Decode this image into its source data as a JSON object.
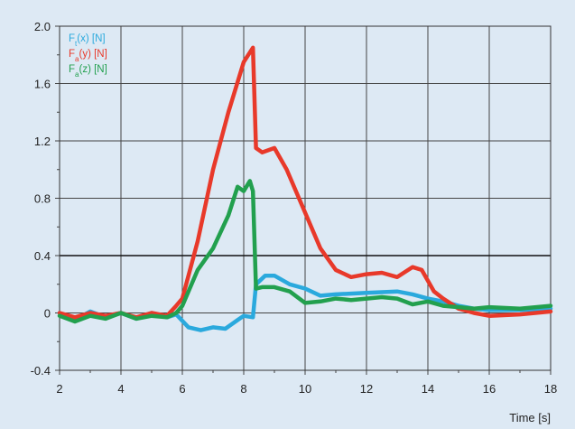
{
  "chart_data": {
    "type": "line",
    "title": "",
    "xlabel": "Time [s]",
    "ylabel": "",
    "xlim": [
      2,
      18
    ],
    "ylim": [
      -0.4,
      2.0
    ],
    "xticks": [
      "2",
      "4",
      "6",
      "8",
      "10",
      "12",
      "14",
      "16",
      "18"
    ],
    "yticks": [
      "-0.4",
      "0",
      "0.4",
      "0.8",
      "1.2",
      "1.6",
      "2.0"
    ],
    "grid": true,
    "legend_position": "top-left",
    "series": [
      {
        "name": "Ft(x) [N]",
        "label_main": "F",
        "label_sub": "t",
        "label_rest": "(x) [N]",
        "color": "#2aa9dd",
        "x": [
          2,
          2.5,
          3,
          3.5,
          4,
          4.5,
          5,
          5.5,
          5.8,
          6.2,
          6.6,
          7.0,
          7.4,
          7.8,
          8.0,
          8.3,
          8.4,
          8.7,
          9.0,
          9.5,
          10,
          10.5,
          11,
          12,
          13,
          13.5,
          14,
          14.5,
          15,
          15.5,
          16,
          17,
          18
        ],
        "values": [
          0.0,
          -0.05,
          0.01,
          -0.03,
          0.0,
          -0.04,
          0.0,
          -0.03,
          -0.01,
          -0.1,
          -0.12,
          -0.1,
          -0.11,
          -0.05,
          -0.02,
          -0.03,
          0.2,
          0.26,
          0.26,
          0.2,
          0.17,
          0.12,
          0.13,
          0.14,
          0.15,
          0.13,
          0.1,
          0.08,
          0.05,
          0.03,
          0.02,
          0.02,
          0.03
        ]
      },
      {
        "name": "Fa(y) [N]",
        "label_main": "F",
        "label_sub": "a",
        "label_rest": "(y) [N]",
        "color": "#e8392a",
        "x": [
          2,
          2.5,
          3,
          3.5,
          4,
          4.5,
          5,
          5.5,
          5.8,
          6.0,
          6.5,
          7.0,
          7.5,
          8.0,
          8.3,
          8.4,
          8.6,
          9.0,
          9.4,
          10,
          10.5,
          11,
          11.5,
          12,
          12.5,
          13,
          13.5,
          13.8,
          14.2,
          14.5,
          15,
          15.5,
          16,
          17,
          18
        ],
        "values": [
          0.0,
          -0.03,
          0.0,
          -0.02,
          0.0,
          -0.03,
          0.0,
          -0.02,
          0.05,
          0.1,
          0.5,
          1.0,
          1.4,
          1.75,
          1.85,
          1.15,
          1.12,
          1.15,
          1.0,
          0.7,
          0.45,
          0.3,
          0.25,
          0.27,
          0.28,
          0.25,
          0.32,
          0.3,
          0.15,
          0.1,
          0.03,
          0.0,
          -0.02,
          -0.01,
          0.01
        ]
      },
      {
        "name": "Fa(z) [N]",
        "label_main": "F",
        "label_sub": "a",
        "label_rest": "(z) [N]",
        "color": "#22a04e",
        "x": [
          2,
          2.5,
          3,
          3.5,
          4,
          4.5,
          5,
          5.5,
          5.8,
          6.0,
          6.5,
          7.0,
          7.5,
          7.8,
          8.0,
          8.2,
          8.3,
          8.4,
          8.6,
          9.0,
          9.5,
          10,
          10.5,
          11,
          11.5,
          12,
          12.5,
          13,
          13.5,
          14,
          14.5,
          15,
          15.5,
          16,
          17,
          18
        ],
        "values": [
          -0.02,
          -0.06,
          -0.02,
          -0.04,
          0.0,
          -0.04,
          -0.02,
          -0.03,
          0.0,
          0.05,
          0.3,
          0.45,
          0.68,
          0.88,
          0.85,
          0.92,
          0.85,
          0.17,
          0.18,
          0.18,
          0.15,
          0.07,
          0.08,
          0.1,
          0.09,
          0.1,
          0.11,
          0.1,
          0.06,
          0.08,
          0.05,
          0.04,
          0.03,
          0.04,
          0.03,
          0.05
        ]
      }
    ]
  }
}
